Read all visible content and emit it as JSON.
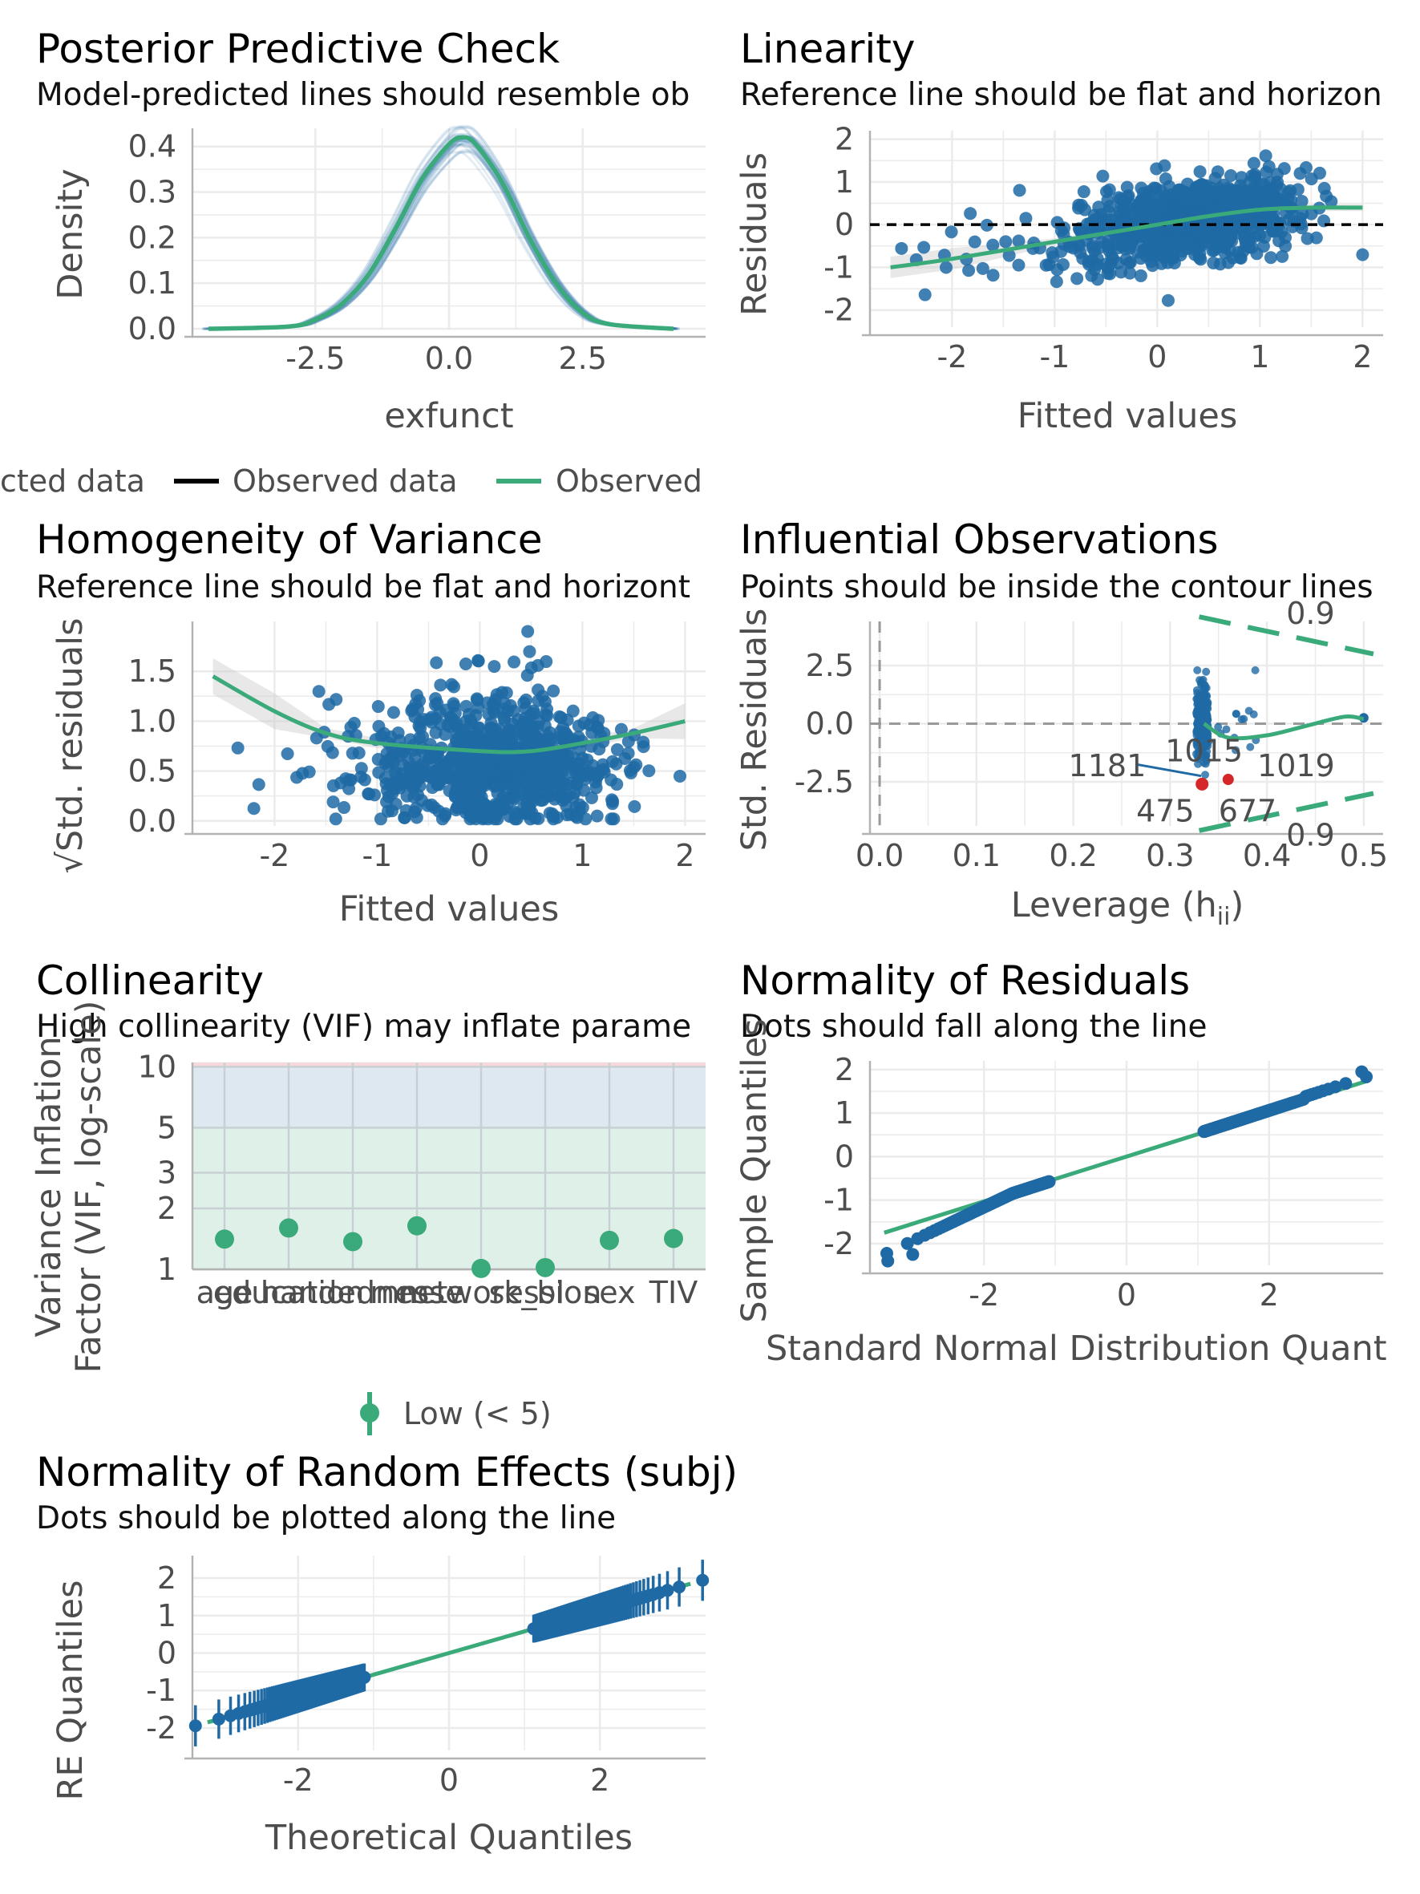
{
  "colors": {
    "blue": "#1f6aa5",
    "green": "#3aaa7a",
    "red": "#d62728",
    "black": "#000000",
    "grid": "#ebebeb"
  },
  "panels": {
    "ppc": {
      "title": "Posterior Predictive Check",
      "subtitle": "Model-predicted lines should resemble ob",
      "xlabel": "exfunct",
      "ylabel": "Density",
      "legend": [
        "cted data",
        "Observed data",
        "Observed"
      ]
    },
    "lin": {
      "title": "Linearity",
      "subtitle": "Reference line should be flat and horizon",
      "xlabel": "Fitted values",
      "ylabel": "Residuals"
    },
    "hov": {
      "title": "Homogeneity of Variance",
      "subtitle": "Reference line should be flat and horizont",
      "xlabel": "Fitted values",
      "ylabel": "√Std. residuals"
    },
    "infl": {
      "title": "Influential Observations",
      "subtitle": "Points should be inside the contour lines",
      "xlabel": "Leverage (h",
      "xlabel_sub": "ii",
      "xlabel_end": ")",
      "ylabel": "Std. Residuals",
      "labels": [
        {
          "text": "1181",
          "color": "blue"
        },
        {
          "text": "1015",
          "color": "blue"
        },
        {
          "text": "1019",
          "color": "red"
        },
        {
          "text": "475",
          "color": "red"
        },
        {
          "text": "677",
          "color": "red"
        }
      ],
      "contour_label": "0.9"
    },
    "col": {
      "title": "Collinearity",
      "subtitle": "High collinearity (VIF) may inflate parame",
      "ylabel1": "Variance Inflation",
      "ylabel2": "Factor (VIF, log-scale)",
      "legend": "Low (< 5)"
    },
    "nres": {
      "title": "Normality of Residuals",
      "subtitle": "Dots should fall along the line",
      "xlabel": "Standard Normal Distribution Quant",
      "ylabel": "Sample Quantiles"
    },
    "nre": {
      "title": "Normality of Random Effects (subj)",
      "subtitle": "Dots should be plotted along the line",
      "xlabel": "Theoretical Quantiles",
      "ylabel": "RE Quantiles"
    }
  },
  "chart_data": [
    {
      "type": "line",
      "title": "Posterior Predictive Check",
      "xlabel": "exfunct",
      "ylabel": "Density",
      "xlim": [
        -4.8,
        4.8
      ],
      "ylim": [
        0,
        0.44
      ],
      "xticks": [
        -2.5,
        0.0,
        2.5
      ],
      "yticks": [
        0.0,
        0.1,
        0.2,
        0.3,
        0.4
      ],
      "series": [
        {
          "name": "Observed",
          "x": [
            -4.5,
            -3,
            -2.5,
            -2,
            -1.5,
            -1,
            -0.5,
            0,
            0.25,
            0.5,
            1,
            1.5,
            2,
            2.5,
            3,
            4.2
          ],
          "y": [
            0,
            0.005,
            0.02,
            0.055,
            0.12,
            0.22,
            0.33,
            0.405,
            0.42,
            0.405,
            0.32,
            0.2,
            0.1,
            0.035,
            0.01,
            0
          ]
        }
      ]
    },
    {
      "type": "scatter",
      "title": "Linearity",
      "xlabel": "Fitted values",
      "ylabel": "Residuals",
      "xlim": [
        -2.8,
        2.2
      ],
      "ylim": [
        -2.4,
        2.2
      ],
      "xticks": [
        -2,
        -1,
        0,
        1,
        2
      ],
      "yticks": [
        -2,
        -1,
        0,
        1,
        2
      ],
      "smooth": {
        "x": [
          -2.6,
          -2,
          -1,
          0,
          0.5,
          1,
          1.5,
          2
        ],
        "y": [
          -1.0,
          -0.8,
          -0.4,
          0.0,
          0.2,
          0.35,
          0.4,
          0.4
        ]
      },
      "reference_line": 0
    },
    {
      "type": "scatter",
      "title": "Homogeneity of Variance",
      "xlabel": "Fitted values",
      "ylabel": "√Std. residuals",
      "xlim": [
        -2.8,
        2.2
      ],
      "ylim": [
        -0.05,
        2.0
      ],
      "xticks": [
        -2,
        -1,
        0,
        1,
        2
      ],
      "yticks": [
        0.0,
        0.5,
        1.0,
        1.5
      ],
      "smooth": {
        "x": [
          -2.6,
          -2,
          -1.5,
          -1,
          0,
          0.5,
          1,
          1.5,
          2
        ],
        "y": [
          1.45,
          1.1,
          0.88,
          0.78,
          0.7,
          0.7,
          0.78,
          0.88,
          1.0
        ]
      }
    },
    {
      "type": "scatter",
      "title": "Influential Observations",
      "xlabel": "Leverage (hii)",
      "ylabel": "Std. Residuals",
      "xlim": [
        -0.01,
        0.52
      ],
      "ylim": [
        -4.4,
        4.4
      ],
      "xticks": [
        0.0,
        0.1,
        0.2,
        0.3,
        0.4,
        0.5
      ],
      "yticks": [
        -2.5,
        0.0,
        2.5
      ],
      "cluster_x": 0.333,
      "labeled_points": [
        {
          "label": "1181",
          "x": 0.333,
          "y": -2.3
        },
        {
          "label": "1015",
          "x": 0.333,
          "y": -1.8
        },
        {
          "label": "1019",
          "x": 0.36,
          "y": -2.2
        },
        {
          "label": "475",
          "x": 0.333,
          "y": -2.3
        },
        {
          "label": "677",
          "x": 0.36,
          "y": -2.2
        }
      ],
      "contour": "0.9"
    },
    {
      "type": "scatter",
      "title": "Collinearity",
      "ylabel": "Variance Inflation Factor (VIF, log-scale)",
      "ylim": [
        1,
        10
      ],
      "yticks": [
        1,
        2,
        3,
        5,
        10
      ],
      "log_y": true,
      "categories": [
        "age",
        "education",
        "handedness",
        "mmse",
        "network_bl",
        "session",
        "sex",
        "TIV"
      ],
      "values": [
        1.41,
        1.6,
        1.37,
        1.64,
        1.01,
        1.02,
        1.39,
        1.42
      ],
      "legend": "Low (< 5)"
    },
    {
      "type": "scatter",
      "title": "Normality of Residuals",
      "xlabel": "Standard Normal Distribution Quant",
      "ylabel": "Sample Quantiles",
      "xlim": [
        -3.6,
        3.6
      ],
      "ylim": [
        -2.5,
        2.2
      ],
      "xticks": [
        -2,
        0,
        2
      ],
      "yticks": [
        -2,
        -1,
        0,
        1,
        2
      ],
      "line": {
        "x": [
          -3.4,
          3.4
        ],
        "y": [
          -1.75,
          1.75
        ]
      }
    },
    {
      "type": "scatter",
      "title": "Normality of Random Effects (subj)",
      "xlabel": "Theoretical Quantiles",
      "ylabel": "RE Quantiles",
      "xlim": [
        -3.4,
        3.4
      ],
      "ylim": [
        -2.6,
        2.6
      ],
      "xticks": [
        -2,
        0,
        2
      ],
      "yticks": [
        -2,
        -1,
        0,
        1,
        2
      ],
      "line": {
        "x": [
          -3.2,
          3.2
        ],
        "y": [
          -1.85,
          1.85
        ]
      }
    }
  ]
}
